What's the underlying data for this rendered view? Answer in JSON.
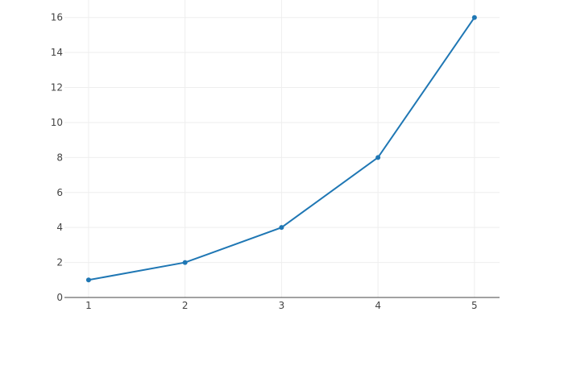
{
  "chart_data": {
    "type": "line",
    "title": "",
    "xlabel": "",
    "ylabel": "",
    "x": [
      1,
      2,
      3,
      4,
      5
    ],
    "series": [
      {
        "values": [
          1,
          2,
          4,
          8,
          16
        ],
        "color": "#1f77b4",
        "mode": "lines+markers"
      }
    ],
    "xlim": [
      0.75,
      5.26
    ],
    "ylim": [
      0,
      17
    ],
    "xticks": [
      "1",
      "2",
      "3",
      "4",
      "5"
    ],
    "yticks": [
      "0",
      "2",
      "4",
      "6",
      "8",
      "10",
      "12",
      "14",
      "16"
    ],
    "grid": true,
    "legend": "none"
  }
}
